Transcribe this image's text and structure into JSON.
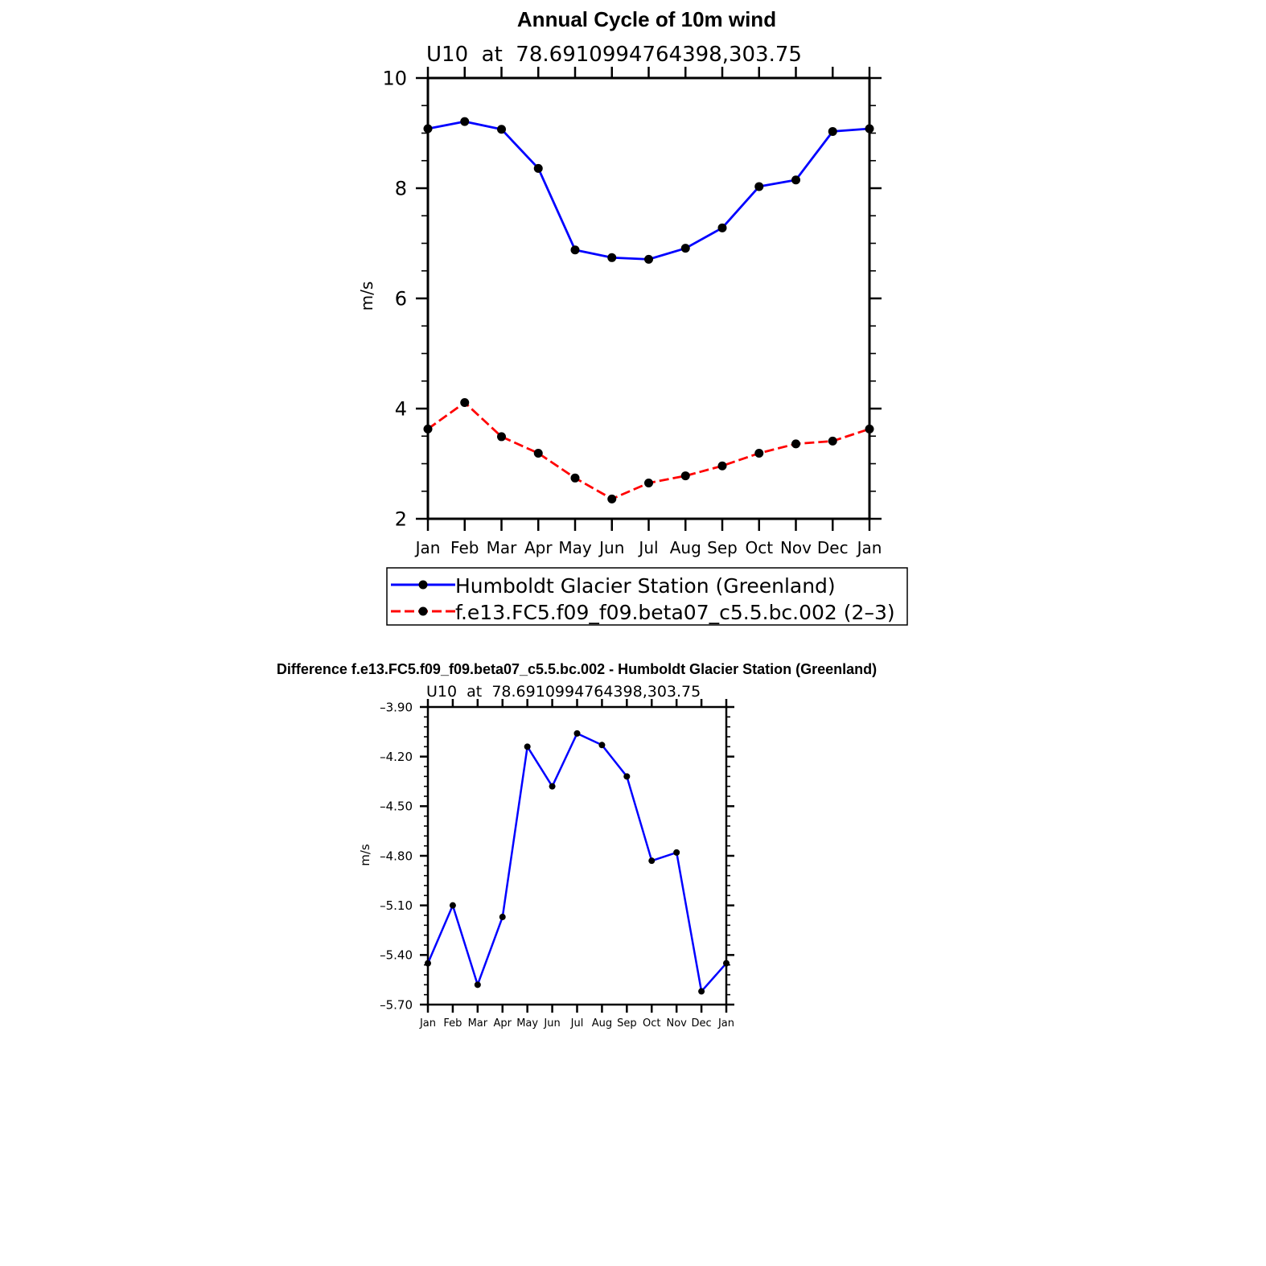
{
  "chart_data": [
    {
      "type": "line",
      "title": "Annual Cycle of 10m wind",
      "subtitle": "U10  at  78.6910994764398,303.75",
      "xlabel": "",
      "ylabel": "m/s",
      "categories": [
        "Jan",
        "Feb",
        "Mar",
        "Apr",
        "May",
        "Jun",
        "Jul",
        "Aug",
        "Sep",
        "Oct",
        "Nov",
        "Dec",
        "Jan"
      ],
      "ylim": [
        2,
        10
      ],
      "yticks": [
        "10",
        "8",
        "6",
        "4",
        "2"
      ],
      "grid": false,
      "legend_position": "bottom",
      "series": [
        {
          "name": "Humboldt Glacier Station (Greenland)",
          "color": "#0000ff",
          "dash": "solid",
          "values": [
            9.08,
            9.21,
            9.07,
            8.36,
            6.88,
            6.74,
            6.71,
            6.91,
            7.28,
            8.03,
            8.15,
            9.03,
            9.08
          ]
        },
        {
          "name": "f.e13.FC5.f09_f09.beta07_c5.5.bc.002 (2–3)",
          "color": "#ff0000",
          "dash": "dashed",
          "values": [
            3.63,
            4.11,
            3.49,
            3.19,
            2.74,
            2.36,
            2.65,
            2.78,
            2.96,
            3.19,
            3.36,
            3.41,
            3.63
          ]
        }
      ]
    },
    {
      "type": "line",
      "title": "Difference f.e13.FC5.f09_f09.beta07_c5.5.bc.002 - Humboldt Glacier Station (Greenland)",
      "subtitle": "U10  at  78.6910994764398,303.75",
      "xlabel": "",
      "ylabel": "m/s",
      "categories": [
        "Jan",
        "Feb",
        "Mar",
        "Apr",
        "May",
        "Jun",
        "Jul",
        "Aug",
        "Sep",
        "Oct",
        "Nov",
        "Dec",
        "Jan"
      ],
      "ylim": [
        -5.7,
        -3.9
      ],
      "yticks": [
        "–3.90",
        "–4.20",
        "–4.50",
        "–4.80",
        "–5.10",
        "–5.40",
        "–5.70"
      ],
      "grid": false,
      "series": [
        {
          "color": "#0000ff",
          "dash": "solid",
          "values": [
            -5.45,
            -5.1,
            -5.58,
            -5.17,
            -4.14,
            -4.38,
            -4.06,
            -4.13,
            -4.32,
            -4.83,
            -4.78,
            -5.62,
            -5.45
          ]
        }
      ]
    }
  ]
}
